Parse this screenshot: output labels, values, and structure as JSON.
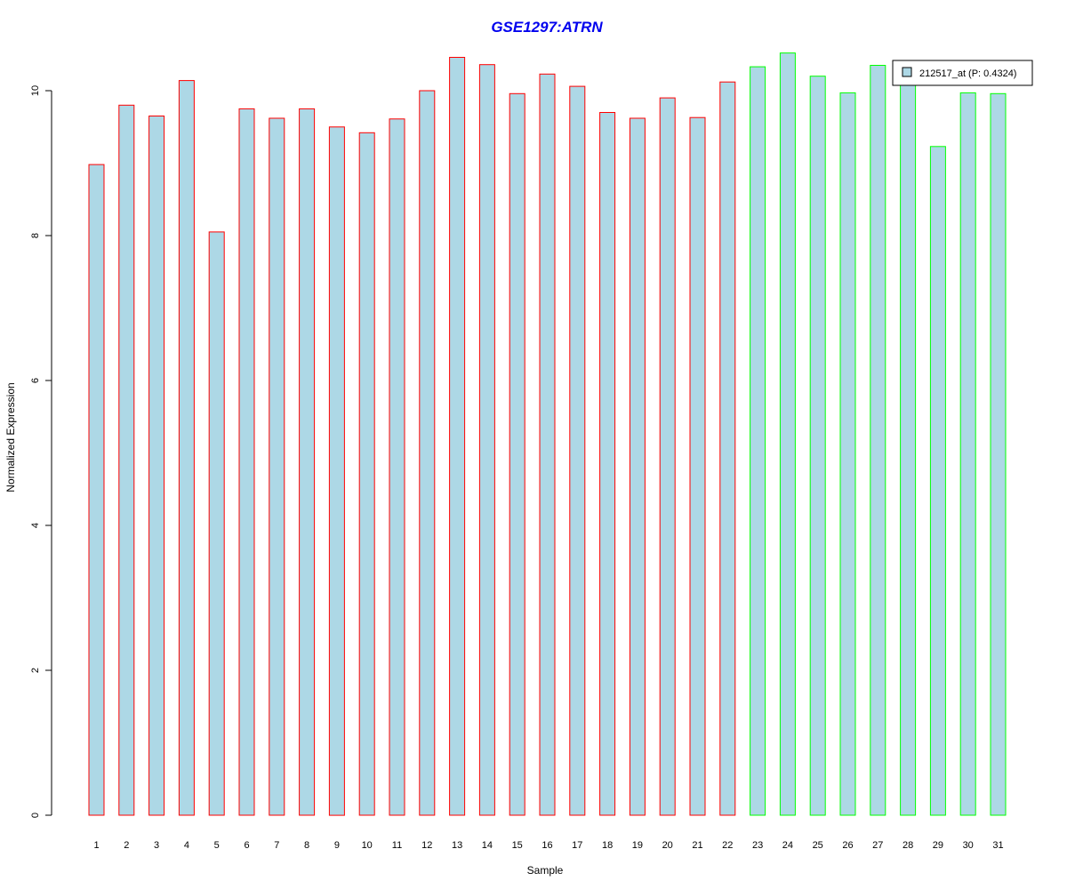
{
  "chart_data": {
    "type": "bar",
    "title": "GSE1297:ATRN",
    "xlabel": "Sample",
    "ylabel": "Normalized Expression",
    "ylim": [
      0,
      10.6
    ],
    "y_ticks": [
      0,
      2,
      4,
      6,
      8,
      10
    ],
    "grid": false,
    "legend_position": "top-right",
    "legend": {
      "label": "212517_at (P: 0.4324)"
    },
    "categories": [
      "1",
      "2",
      "3",
      "4",
      "5",
      "6",
      "7",
      "8",
      "9",
      "10",
      "11",
      "12",
      "13",
      "14",
      "15",
      "16",
      "17",
      "18",
      "19",
      "20",
      "21",
      "22",
      "23",
      "24",
      "25",
      "26",
      "27",
      "28",
      "29",
      "30",
      "31"
    ],
    "values": [
      8.98,
      9.8,
      9.65,
      10.14,
      8.05,
      9.75,
      9.62,
      9.75,
      9.5,
      9.42,
      9.61,
      10.0,
      10.46,
      10.36,
      9.96,
      10.23,
      10.06,
      9.7,
      9.62,
      9.9,
      9.63,
      10.12,
      10.33,
      10.52,
      10.2,
      9.97,
      10.35,
      10.12,
      9.23,
      9.97,
      9.96
    ],
    "groups": [
      "red",
      "red",
      "red",
      "red",
      "red",
      "red",
      "red",
      "red",
      "red",
      "red",
      "red",
      "red",
      "red",
      "red",
      "red",
      "red",
      "red",
      "red",
      "red",
      "red",
      "red",
      "red",
      "green",
      "green",
      "green",
      "green",
      "green",
      "green",
      "green",
      "green",
      "green"
    ]
  },
  "colors": {
    "bar_fill": "#add8e6",
    "red_border": "#ff0000",
    "green_border": "#00ff00",
    "title": "#0000ee",
    "axis": "#000000"
  }
}
